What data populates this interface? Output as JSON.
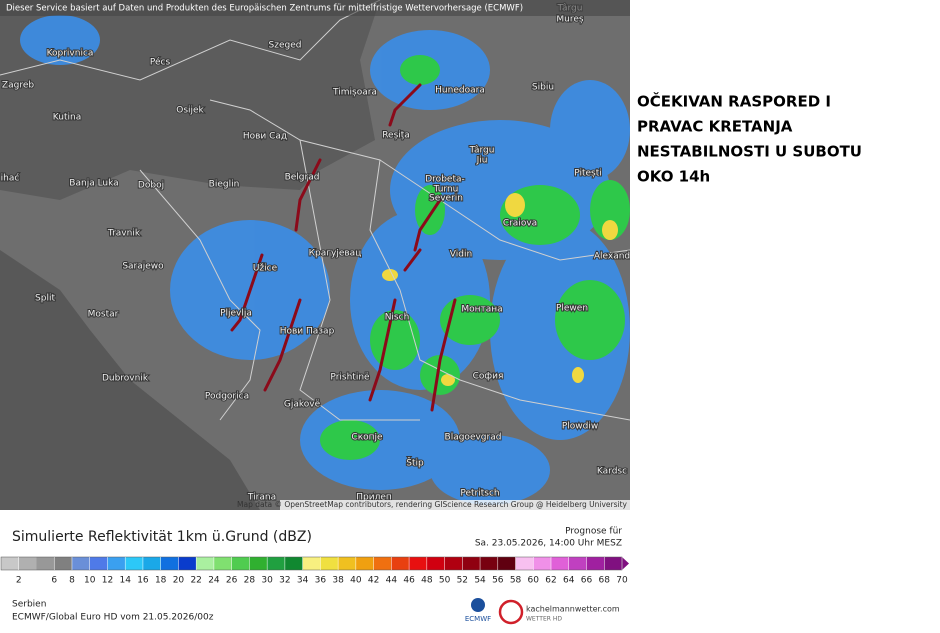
{
  "header": "Dieser Service basiert auf Daten und Produkten des Europäischen Zentrums für mittelfristige Wettervorhersage (ECMWF)",
  "map_labels": [
    "Koprivnica",
    "Pécs",
    "Szeged",
    "Zagreb",
    "Osijek",
    "Timișoara",
    "Hunedoara",
    "Sibiu",
    "Târgu",
    "Mureș",
    "Kutina",
    "Нови Сад",
    "Reșița",
    "Târgu",
    "Jiu",
    "Pitești",
    "ihać",
    "Banja Luka",
    "Doboj",
    "Bieglin",
    "Belgrad",
    "Drobeta-",
    "Turnu",
    "Severin",
    "Craiova",
    "Travnik",
    "Крагујевац",
    "Vidin",
    "Alexand",
    "Sarajewo",
    "Užice",
    "Split",
    "Plewen",
    "Монтана",
    "Mostar",
    "Pljevlja",
    "Nisch",
    "Нови Пазар",
    "Dubrovnik",
    "Prishtinë",
    "София",
    "Podgorica",
    "Gjakovë",
    "Plowdiw",
    "Скопје",
    "Blagoevgrad",
    "Štip",
    "Kardsc",
    "Прилеп",
    "Petritsch",
    "Tirana"
  ],
  "attribution": "Map data © OpenStreetMap contributors, rendering GIScience Research Group @ Heidelberg University",
  "annotation": [
    "OČEKIVAN RASPORED I",
    "PRAVAC KRETANJA",
    "NESTABILNOSTI U SUBOTU",
    "OKO 14h"
  ],
  "legend": {
    "title": "Simulierte Reflektivität 1km ü.Grund (dBZ)",
    "forecast_label": "Prognose für",
    "forecast_time": "Sa. 23.05.2026, 14:00 Uhr MESZ",
    "lim": [
      0,
      70
    ],
    "ticks": [
      2,
      6,
      8,
      10,
      12,
      14,
      16,
      18,
      20,
      22,
      24,
      26,
      28,
      30,
      32,
      34,
      36,
      38,
      40,
      42,
      44,
      46,
      48,
      50,
      52,
      54,
      56,
      58,
      60,
      62,
      64,
      66,
      68,
      70
    ],
    "colors": [
      "#c8c8c8",
      "#b0b0b0",
      "#989898",
      "#808080",
      "#6a8fd8",
      "#4f7ae8",
      "#3aa0f0",
      "#2cc8f8",
      "#1aa8e8",
      "#1070e0",
      "#0a3ccc",
      "#aaf0a0",
      "#80e070",
      "#50cc50",
      "#30b030",
      "#20a040",
      "#108830",
      "#f8f080",
      "#f0e040",
      "#f0c020",
      "#f0a010",
      "#f07010",
      "#e84010",
      "#e81010",
      "#d00010",
      "#b00010",
      "#900010",
      "#780010",
      "#600010",
      "#f8c0f0",
      "#f090e8",
      "#e060d8",
      "#c040c0",
      "#a020a0",
      "#801080"
    ]
  },
  "footer": {
    "region": "Serbien",
    "model": "ECMWF/Global Euro HD vom  21.05.2026/00z",
    "logo1": "ECMWF",
    "logo2": "kachelmannwetter.com",
    "logo3": "WETTER HD"
  }
}
